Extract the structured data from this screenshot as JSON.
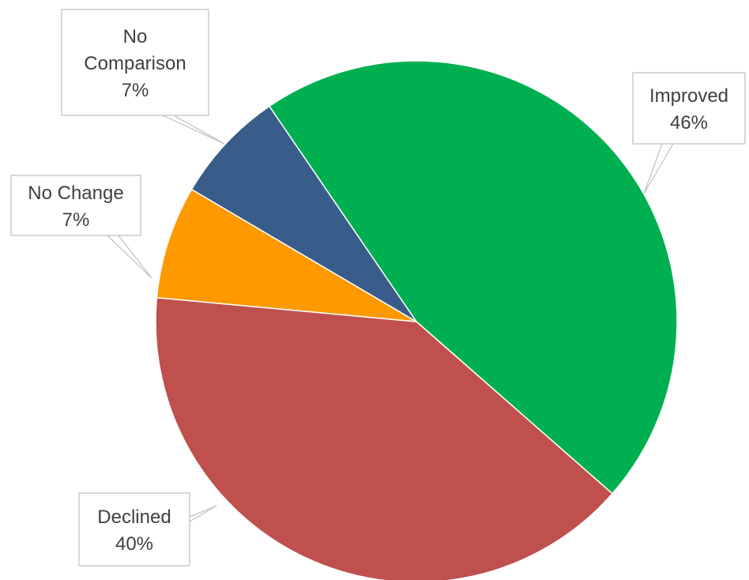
{
  "chart_data": {
    "type": "pie",
    "slices": [
      {
        "name": "Improved",
        "value": 46,
        "label": "46%",
        "color": "#00b050"
      },
      {
        "name": "Declined",
        "value": 40,
        "label": "40%",
        "color": "#c0504d"
      },
      {
        "name": "No Change",
        "value": 7,
        "label": "7%",
        "color": "#ff9900"
      },
      {
        "name": "No Comparison",
        "value": 7,
        "label": "7%",
        "color": "#385d8a"
      }
    ],
    "legend": "none",
    "data_labels": "callouts"
  }
}
